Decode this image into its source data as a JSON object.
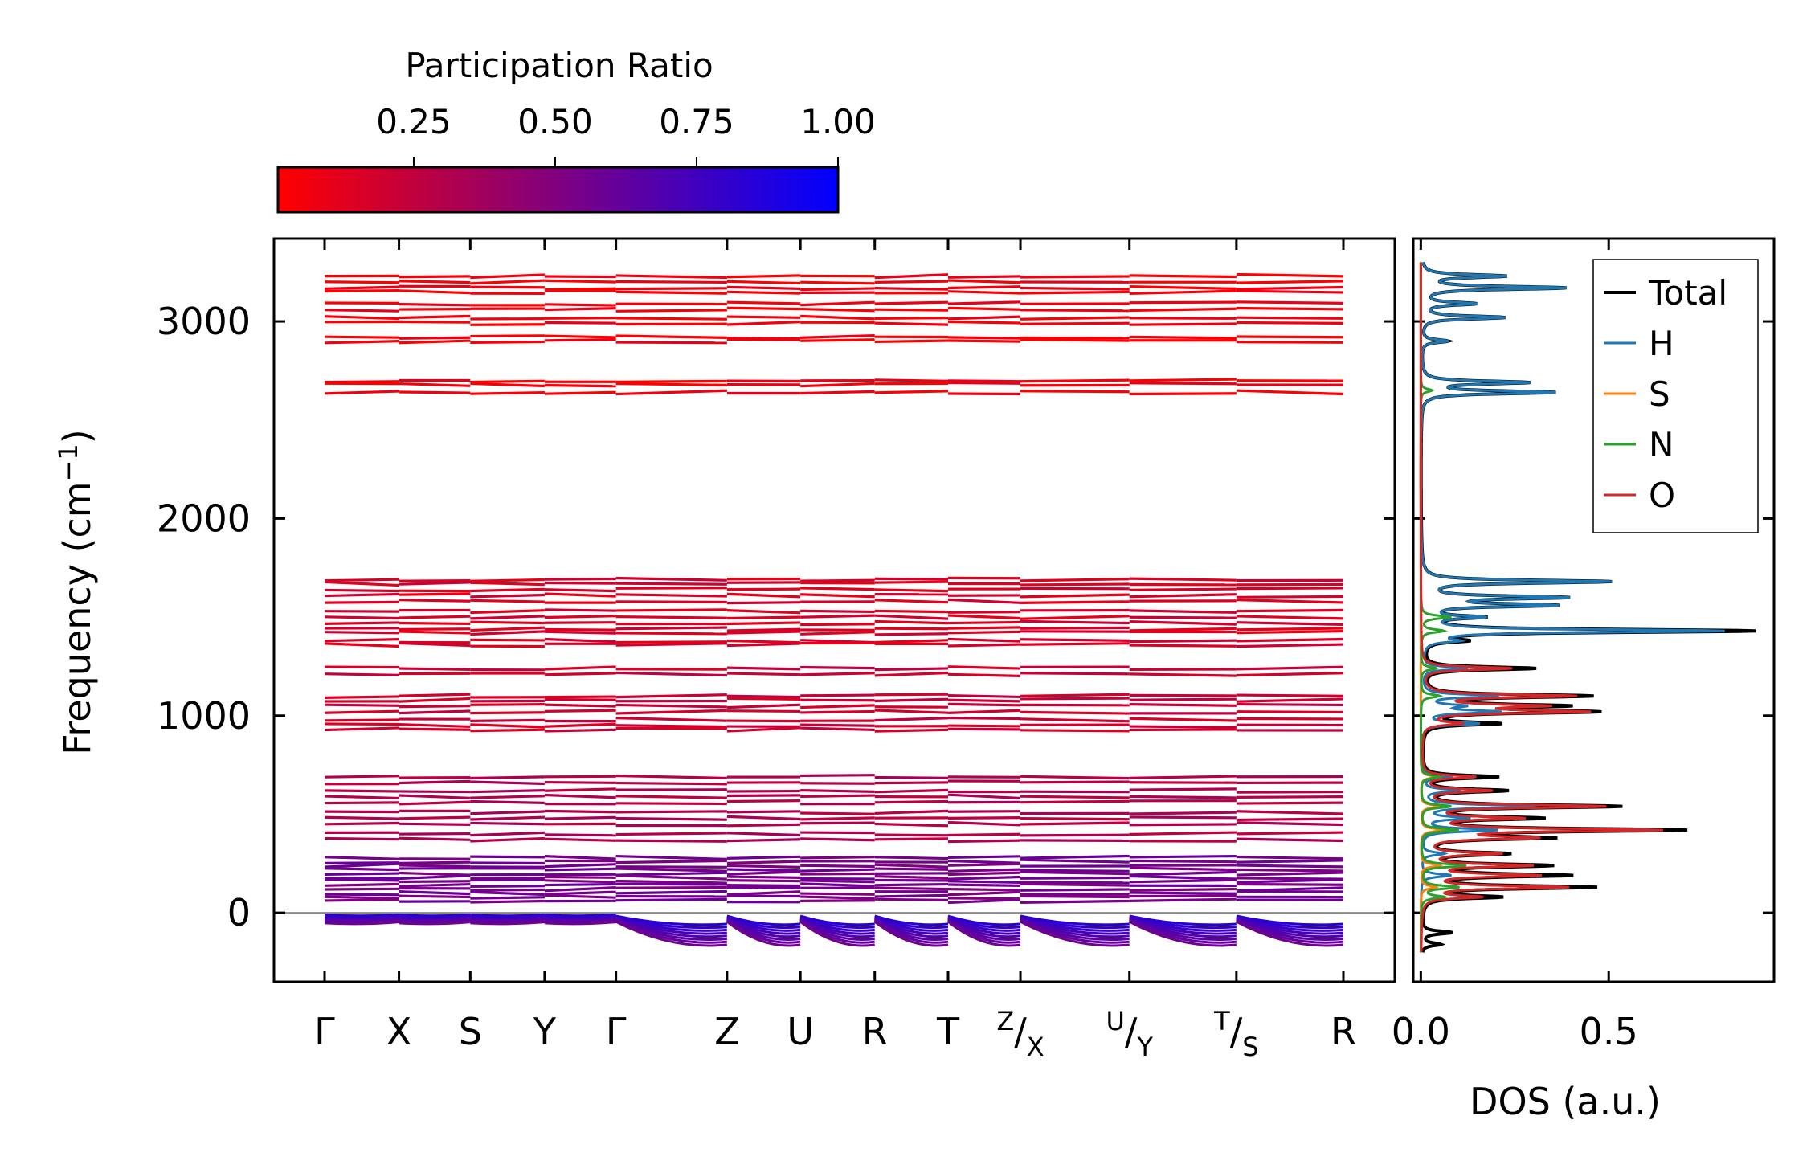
{
  "chart_data": [
    {
      "type": "line",
      "panel": "band-structure",
      "title": "",
      "ylabel_main": "Frequency (cm",
      "ylabel_sup": "−1",
      "ylabel_close": ")",
      "ylim": [
        -350,
        3420
      ],
      "y_ticks": [
        0,
        1000,
        2000,
        3000
      ],
      "y_tick_labels": [
        "0",
        "1000",
        "2000",
        "3000"
      ],
      "x_ticks": [
        {
          "main": "Γ",
          "pre": "",
          "sub": ""
        },
        {
          "main": "X",
          "pre": "",
          "sub": ""
        },
        {
          "main": "S",
          "pre": "",
          "sub": ""
        },
        {
          "main": "Y",
          "pre": "",
          "sub": ""
        },
        {
          "main": "Γ",
          "pre": "",
          "sub": ""
        },
        {
          "main": "Z",
          "pre": "",
          "sub": ""
        },
        {
          "main": "U",
          "pre": "",
          "sub": ""
        },
        {
          "main": "R",
          "pre": "",
          "sub": ""
        },
        {
          "main": "T",
          "pre": "",
          "sub": ""
        },
        {
          "main": "/",
          "pre": "Z",
          "sub": "X"
        },
        {
          "main": "/",
          "pre": "U",
          "sub": "Y"
        },
        {
          "main": "/",
          "pre": "T",
          "sub": "S"
        },
        {
          "main": "R",
          "pre": "",
          "sub": ""
        }
      ],
      "segment_positions": [
        0,
        0.073,
        0.143,
        0.216,
        0.286,
        0.395,
        0.467,
        0.54,
        0.612,
        0.683,
        0.79,
        0.895,
        1.0
      ],
      "band_groups": [
        {
          "freqs": [
            3230,
            3200,
            3170,
            3150,
            3090,
            3060,
            3020,
            2990,
            2920,
            2900
          ],
          "pr": 0.05
        },
        {
          "freqs": [
            2700,
            2680,
            2640
          ],
          "pr": 0.05
        },
        {
          "freqs": [
            1690,
            1670,
            1640,
            1610,
            1580,
            1530,
            1500,
            1470,
            1440,
            1420,
            1380,
            1360
          ],
          "pr": 0.15
        },
        {
          "freqs": [
            1240,
            1210,
            1100,
            1080,
            1050,
            1020,
            980,
            950,
            930
          ],
          "pr": 0.2
        },
        {
          "freqs": [
            690,
            660,
            620,
            590,
            560,
            510,
            480,
            450,
            400,
            370
          ],
          "pr": 0.3
        },
        {
          "freqs": [
            280,
            260,
            240,
            220,
            200,
            180,
            160,
            140,
            120,
            100,
            80,
            60
          ],
          "pr": 0.55
        }
      ],
      "acoustic": {
        "min_freq": -180,
        "pr": 0.85
      },
      "colorbar": {
        "label": "Participation Ratio",
        "ticks": [
          0.25,
          0.5,
          0.75,
          1.0
        ],
        "tick_labels": [
          "0.25",
          "0.50",
          "0.75",
          "1.00"
        ],
        "range": [
          0.01,
          1.0
        ],
        "colors": [
          "#ff0000",
          "#0000ff"
        ]
      }
    },
    {
      "type": "line",
      "panel": "dos",
      "xlabel": "DOS (a.u.)",
      "xlim": [
        -0.02,
        0.94
      ],
      "ylim": [
        -350,
        3420
      ],
      "x_ticks": [
        0.0,
        0.5
      ],
      "x_tick_labels": [
        "0.0",
        "0.5"
      ],
      "legend_position": "top-right",
      "series": [
        {
          "name": "Total",
          "color": "#000000",
          "peaks": [
            [
              3230,
              0.22
            ],
            [
              3170,
              0.38
            ],
            [
              3090,
              0.14
            ],
            [
              3020,
              0.22
            ],
            [
              2900,
              0.07
            ],
            [
              2690,
              0.28
            ],
            [
              2640,
              0.35
            ],
            [
              1680,
              0.5
            ],
            [
              1600,
              0.37
            ],
            [
              1560,
              0.34
            ],
            [
              1500,
              0.15
            ],
            [
              1430,
              0.88
            ],
            [
              1380,
              0.1
            ],
            [
              1240,
              0.3
            ],
            [
              1100,
              0.44
            ],
            [
              1050,
              0.35
            ],
            [
              1020,
              0.44
            ],
            [
              960,
              0.2
            ],
            [
              690,
              0.2
            ],
            [
              620,
              0.22
            ],
            [
              540,
              0.52
            ],
            [
              480,
              0.3
            ],
            [
              420,
              0.68
            ],
            [
              380,
              0.32
            ],
            [
              300,
              0.22
            ],
            [
              240,
              0.33
            ],
            [
              190,
              0.38
            ],
            [
              130,
              0.45
            ],
            [
              80,
              0.2
            ],
            [
              -100,
              0.08
            ],
            [
              -160,
              0.05
            ]
          ]
        },
        {
          "name": "H",
          "color": "#1f77b4",
          "peaks": [
            [
              3230,
              0.22
            ],
            [
              3170,
              0.38
            ],
            [
              3090,
              0.14
            ],
            [
              3020,
              0.22
            ],
            [
              2900,
              0.07
            ],
            [
              2690,
              0.28
            ],
            [
              2640,
              0.35
            ],
            [
              1680,
              0.5
            ],
            [
              1600,
              0.37
            ],
            [
              1560,
              0.34
            ],
            [
              1500,
              0.15
            ],
            [
              1430,
              0.8
            ],
            [
              1380,
              0.08
            ],
            [
              1240,
              0.12
            ],
            [
              1100,
              0.2
            ],
            [
              1050,
              0.1
            ],
            [
              1020,
              0.2
            ],
            [
              960,
              0.15
            ],
            [
              690,
              0.08
            ],
            [
              620,
              0.1
            ],
            [
              540,
              0.3
            ],
            [
              480,
              0.12
            ],
            [
              420,
              0.2
            ],
            [
              300,
              0.06
            ],
            [
              190,
              0.08
            ]
          ]
        },
        {
          "name": "S",
          "color": "#ff7f0e",
          "peaks": [
            [
              690,
              0.04
            ],
            [
              540,
              0.05
            ],
            [
              420,
              0.06
            ],
            [
              240,
              0.05
            ],
            [
              130,
              0.04
            ]
          ]
        },
        {
          "name": "N",
          "color": "#2ca02c",
          "peaks": [
            [
              2650,
              0.03
            ],
            [
              1500,
              0.08
            ],
            [
              1430,
              0.06
            ],
            [
              1240,
              0.04
            ],
            [
              1100,
              0.05
            ],
            [
              690,
              0.05
            ],
            [
              540,
              0.08
            ],
            [
              420,
              0.1
            ],
            [
              240,
              0.12
            ],
            [
              130,
              0.1
            ],
            [
              80,
              0.06
            ]
          ]
        },
        {
          "name": "O",
          "color": "#d62728",
          "peaks": [
            [
              1240,
              0.24
            ],
            [
              1100,
              0.4
            ],
            [
              1050,
              0.3
            ],
            [
              1020,
              0.42
            ],
            [
              960,
              0.1
            ],
            [
              690,
              0.14
            ],
            [
              620,
              0.18
            ],
            [
              540,
              0.48
            ],
            [
              480,
              0.25
            ],
            [
              420,
              0.62
            ],
            [
              380,
              0.28
            ],
            [
              300,
              0.2
            ],
            [
              240,
              0.28
            ],
            [
              190,
              0.3
            ],
            [
              130,
              0.38
            ],
            [
              80,
              0.15
            ]
          ]
        }
      ]
    }
  ]
}
